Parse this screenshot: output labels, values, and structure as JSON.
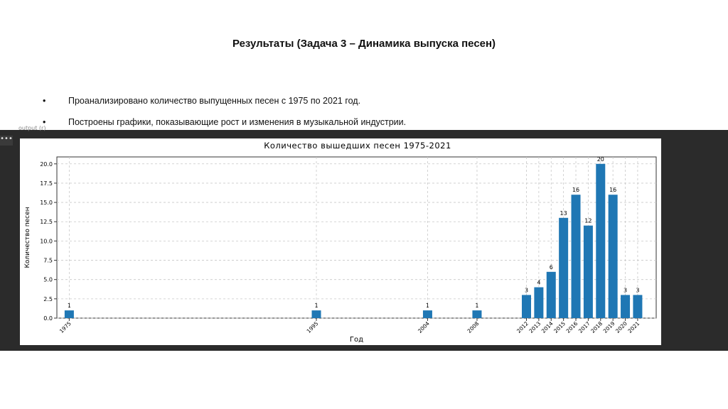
{
  "slide": {
    "title": "Результаты (Задача 3 – Динамика выпуска песен)",
    "bullets": [
      "Проанализировано количество выпущенных песен с 1975 по 2021 год.",
      "Построены графики, показывающие рост и изменения в музыкальной индустрии."
    ],
    "bullet_symbol": "•",
    "strip_label": "output (r)",
    "menu_label": "•••"
  },
  "colors": {
    "bar": "#1f77b4",
    "strip": "#2b2b2b",
    "grid": "#c8c8c8"
  },
  "chart_data": {
    "type": "bar",
    "title": "Количество вышедших песен 1975-2021",
    "xlabel": "Год",
    "ylabel": "Количество песен",
    "categories": [
      "1975",
      "1995",
      "2004",
      "2008",
      "2012",
      "2013",
      "2014",
      "2015",
      "2016",
      "2017",
      "2018",
      "2019",
      "2020",
      "2021"
    ],
    "values": [
      1,
      1,
      1,
      1,
      3,
      4,
      6,
      13,
      16,
      12,
      20,
      16,
      3,
      3
    ],
    "data_labels": [
      "1",
      "1",
      "1",
      "1",
      "3",
      "4",
      "6",
      "13",
      "16",
      "12",
      "20",
      "16",
      "3",
      "3"
    ],
    "ylim": [
      0,
      20.9
    ],
    "yticks": [
      0.0,
      2.5,
      5.0,
      7.5,
      10.0,
      12.5,
      15.0,
      17.5,
      20.0
    ],
    "ytick_labels": [
      "0.0",
      "2.5",
      "5.0",
      "7.5",
      "10.0",
      "12.5",
      "15.0",
      "17.5",
      "20.0"
    ],
    "xlim": [
      1974,
      2022.5
    ],
    "grid": true,
    "x_scale": "year"
  }
}
